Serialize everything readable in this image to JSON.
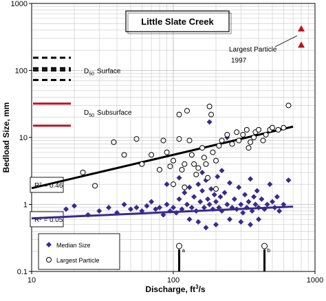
{
  "chart_data": {
    "type": "scatter",
    "title": "Little Slate Creek",
    "xlabel": "Discharge, ft³/s",
    "ylabel": "Bedload Size, mm",
    "x_scale": "log",
    "y_scale": "log",
    "xlim": [
      10,
      1000
    ],
    "ylim": [
      0.1,
      1000
    ],
    "x_ticks": [
      "10",
      "100",
      "1000"
    ],
    "y_ticks": [
      "0.1",
      "1",
      "10",
      "100",
      "1000"
    ],
    "grid": true,
    "colors": {
      "median": "#3b2a8c",
      "largest": "#000000",
      "d50_subsurface": "#c0101e",
      "triangle": "#c0101e"
    },
    "series": [
      {
        "name": "Median Size",
        "marker": "diamond",
        "points": [
          [
            17.5,
            0.85
          ],
          [
            20,
            0.95
          ],
          [
            25,
            0.7
          ],
          [
            30,
            0.8
          ],
          [
            35,
            0.9
          ],
          [
            40,
            0.75
          ],
          [
            45,
            1.0
          ],
          [
            50,
            0.85
          ],
          [
            55,
            0.9
          ],
          [
            60,
            0.8
          ],
          [
            65,
            0.95
          ],
          [
            70,
            1.1
          ],
          [
            75,
            0.85
          ],
          [
            80,
            0.9
          ],
          [
            85,
            0.7
          ],
          [
            90,
            1.0
          ],
          [
            95,
            0.8
          ],
          [
            100,
            0.9
          ],
          [
            105,
            0.75
          ],
          [
            110,
            1.2
          ],
          [
            115,
            0.85
          ],
          [
            120,
            1.5
          ],
          [
            125,
            1.0
          ],
          [
            130,
            1.8
          ],
          [
            135,
            0.9
          ],
          [
            140,
            1.3
          ],
          [
            145,
            0.8
          ],
          [
            150,
            2.0
          ],
          [
            155,
            1.1
          ],
          [
            160,
            1.6
          ],
          [
            165,
            0.9
          ],
          [
            170,
            2.3
          ],
          [
            175,
            1.2
          ],
          [
            180,
            1.0
          ],
          [
            185,
            1.7
          ],
          [
            190,
            0.85
          ],
          [
            195,
            1.4
          ],
          [
            200,
            1.1
          ],
          [
            205,
            2.6
          ],
          [
            210,
            0.9
          ],
          [
            215,
            1.3
          ],
          [
            220,
            0.8
          ],
          [
            230,
            1.5
          ],
          [
            240,
            1.0
          ],
          [
            250,
            2.1
          ],
          [
            260,
            0.9
          ],
          [
            270,
            1.2
          ],
          [
            280,
            0.85
          ],
          [
            290,
            1.8
          ],
          [
            300,
            1.0
          ],
          [
            310,
            0.75
          ],
          [
            320,
            1.4
          ],
          [
            330,
            0.9
          ],
          [
            340,
            1.1
          ],
          [
            350,
            2.4
          ],
          [
            360,
            0.8
          ],
          [
            370,
            1.3
          ],
          [
            380,
            1.0
          ],
          [
            390,
            1.6
          ],
          [
            400,
            0.9
          ],
          [
            420,
            1.2
          ],
          [
            440,
            0.85
          ],
          [
            460,
            1.0
          ],
          [
            480,
            2.0
          ],
          [
            500,
            1.1
          ],
          [
            520,
            0.9
          ],
          [
            540,
            1.3
          ],
          [
            560,
            0.8
          ],
          [
            600,
            1.0
          ],
          [
            650,
            2.3
          ],
          [
            180,
            17
          ],
          [
            240,
            10
          ],
          [
            90,
            2.0
          ],
          [
            110,
            2.5
          ],
          [
            160,
            3.0
          ],
          [
            220,
            3.2
          ],
          [
            130,
            0.6
          ],
          [
            150,
            0.55
          ],
          [
            200,
            0.5
          ],
          [
            250,
            0.6
          ],
          [
            300,
            0.55
          ],
          [
            350,
            0.5
          ],
          [
            400,
            0.6
          ],
          [
            170,
            0.45
          ]
        ]
      },
      {
        "name": "Largest Particle",
        "marker": "circle",
        "points": [
          [
            23,
            3.0
          ],
          [
            28,
            1.9
          ],
          [
            38,
            8.5
          ],
          [
            45,
            5.5
          ],
          [
            55,
            9.5
          ],
          [
            60,
            4.0
          ],
          [
            70,
            5.5
          ],
          [
            80,
            3.3
          ],
          [
            85,
            9.0
          ],
          [
            90,
            6.0
          ],
          [
            95,
            3.7
          ],
          [
            100,
            4.5
          ],
          [
            110,
            9.5
          ],
          [
            115,
            3.3
          ],
          [
            120,
            4.0
          ],
          [
            125,
            25
          ],
          [
            130,
            9.0
          ],
          [
            135,
            5.5
          ],
          [
            140,
            4.0
          ],
          [
            145,
            2.8
          ],
          [
            150,
            3.5
          ],
          [
            160,
            7.0
          ],
          [
            165,
            5.0
          ],
          [
            170,
            4.0
          ],
          [
            175,
            2.5
          ],
          [
            180,
            29
          ],
          [
            185,
            22
          ],
          [
            190,
            6.0
          ],
          [
            200,
            4.5
          ],
          [
            210,
            7.5
          ],
          [
            220,
            9.0
          ],
          [
            240,
            11
          ],
          [
            260,
            8.0
          ],
          [
            280,
            12
          ],
          [
            290,
            9.0
          ],
          [
            310,
            11
          ],
          [
            330,
            13
          ],
          [
            340,
            7.0
          ],
          [
            350,
            8.5
          ],
          [
            370,
            10
          ],
          [
            380,
            12
          ],
          [
            400,
            13
          ],
          [
            430,
            9.0
          ],
          [
            450,
            11
          ],
          [
            480,
            13
          ],
          [
            500,
            14
          ],
          [
            550,
            13
          ],
          [
            600,
            14
          ],
          [
            650,
            30
          ],
          [
            120,
            1.8
          ],
          [
            100,
            2.0
          ],
          [
            200,
            1.7
          ],
          [
            110,
            22
          ]
        ]
      }
    ],
    "trendlines": [
      {
        "series": "Largest Particle",
        "label": "R² = 0.46",
        "x": [
          10,
          700
        ],
        "y": [
          1.75,
          14.5
        ]
      },
      {
        "series": "Median Size",
        "label": "R² = 0.05",
        "x": [
          10,
          700
        ],
        "y": [
          0.62,
          0.93
        ]
      }
    ],
    "annotations": {
      "d50_surface": {
        "label_main": "D",
        "label_sub": "50",
        "label_rest": "Surface",
        "y_values": [
          155,
          108,
          100,
          72
        ]
      },
      "d50_subsurface": {
        "label_main": "D",
        "label_sub": "50",
        "label_rest": "Subsurface",
        "y_values": [
          32,
          15
        ]
      },
      "largest_particle_1997": {
        "line1": "Largest Particle",
        "line2": "1997",
        "triangles": [
          [
            800,
            420
          ],
          [
            800,
            240
          ]
        ]
      },
      "marker_a": {
        "x": 110,
        "label": "a"
      },
      "marker_b": {
        "x": 440,
        "label": "b"
      }
    },
    "legend": {
      "position": "bottom-left",
      "entries": [
        "Median Size",
        "Largest Particle"
      ]
    }
  }
}
